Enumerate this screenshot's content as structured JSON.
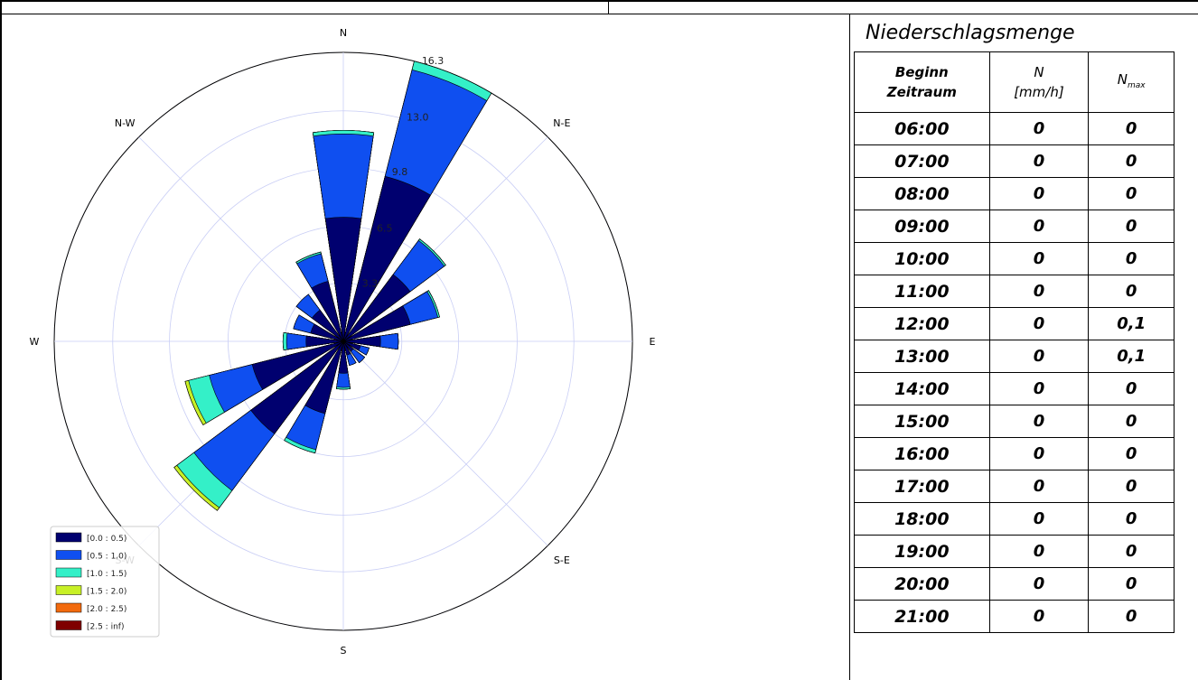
{
  "chart_data": {
    "type": "windrose",
    "directions": [
      "N",
      "N-E",
      "E",
      "S-E",
      "S",
      "S-W",
      "W",
      "N-W"
    ],
    "ring_labels": [
      "3.3",
      "6.5",
      "9.8",
      "13.0",
      "16.3"
    ],
    "r_max": 16.3,
    "legend": [
      "[0.0 : 0.5)",
      "[0.5 : 1.0)",
      "[1.0 : 1.5)",
      "[1.5 : 2.0)",
      "[2.0 : 2.5)",
      "[2.5 : inf)"
    ],
    "colors": [
      "#00006f",
      "#0f4ff0",
      "#34f0c8",
      "#c8f026",
      "#f26a0e",
      "#7f0000"
    ],
    "sector_degrees": [
      0,
      22.5,
      45,
      67.5,
      90,
      112.5,
      135,
      157.5,
      180,
      202.5,
      225,
      247.5,
      270,
      292.5,
      315,
      337.5
    ],
    "bins": [
      [
        7.0,
        11.7,
        11.9,
        11.9,
        11.9,
        11.9
      ],
      [
        9.6,
        15.8,
        16.3,
        16.3,
        16.3,
        16.3
      ],
      [
        4.7,
        7.1,
        7.2,
        7.2,
        7.2,
        7.2
      ],
      [
        3.9,
        5.5,
        5.6,
        5.6,
        5.6,
        5.6
      ],
      [
        2.1,
        3.1,
        3.1,
        3.1,
        3.1,
        3.1
      ],
      [
        1.0,
        1.5,
        1.5,
        1.5,
        1.5,
        1.5
      ],
      [
        0.7,
        1.5,
        1.5,
        1.5,
        1.5,
        1.5
      ],
      [
        0.8,
        1.4,
        1.4,
        1.4,
        1.4,
        1.4
      ],
      [
        1.8,
        2.6,
        2.7,
        2.7,
        2.7,
        2.7
      ],
      [
        4.2,
        6.3,
        6.5,
        6.5,
        6.5,
        6.5
      ],
      [
        6.5,
        10.5,
        11.7,
        11.9,
        11.9,
        11.9
      ],
      [
        5.3,
        7.8,
        9.0,
        9.2,
        9.2,
        9.2
      ],
      [
        2.1,
        3.2,
        3.4,
        3.4,
        3.4,
        3.4
      ],
      [
        1.9,
        2.9,
        2.9,
        2.9,
        2.9,
        2.9
      ],
      [
        2.2,
        3.3,
        3.3,
        3.3,
        3.3,
        3.3
      ],
      [
        3.5,
        5.1,
        5.2,
        5.2,
        5.2,
        5.2
      ]
    ]
  },
  "table": {
    "title": "Niederschlagsmenge",
    "header_time": [
      "Beginn",
      "Zeitraum"
    ],
    "header_n": [
      "N",
      "[mm/h]"
    ],
    "header_nmax_main": "N",
    "header_nmax_sub": "max",
    "rows": [
      {
        "time": "06:00",
        "n": "0",
        "nmax": "0"
      },
      {
        "time": "07:00",
        "n": "0",
        "nmax": "0"
      },
      {
        "time": "08:00",
        "n": "0",
        "nmax": "0"
      },
      {
        "time": "09:00",
        "n": "0",
        "nmax": "0"
      },
      {
        "time": "10:00",
        "n": "0",
        "nmax": "0"
      },
      {
        "time": "11:00",
        "n": "0",
        "nmax": "0"
      },
      {
        "time": "12:00",
        "n": "0",
        "nmax": "0,1"
      },
      {
        "time": "13:00",
        "n": "0",
        "nmax": "0,1"
      },
      {
        "time": "14:00",
        "n": "0",
        "nmax": "0"
      },
      {
        "time": "15:00",
        "n": "0",
        "nmax": "0"
      },
      {
        "time": "16:00",
        "n": "0",
        "nmax": "0"
      },
      {
        "time": "17:00",
        "n": "0",
        "nmax": "0"
      },
      {
        "time": "18:00",
        "n": "0",
        "nmax": "0"
      },
      {
        "time": "19:00",
        "n": "0",
        "nmax": "0"
      },
      {
        "time": "20:00",
        "n": "0",
        "nmax": "0"
      },
      {
        "time": "21:00",
        "n": "0",
        "nmax": "0"
      }
    ]
  }
}
